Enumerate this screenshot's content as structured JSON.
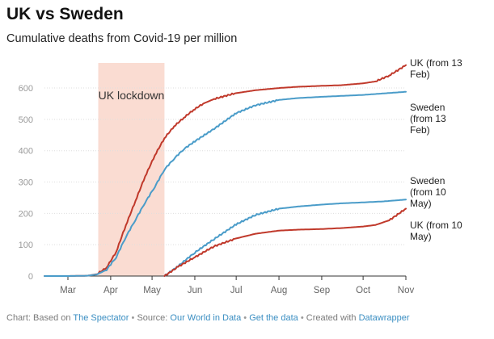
{
  "header": {
    "title": "UK vs Sweden",
    "subtitle": "Cumulative deaths from Covid-19 per million"
  },
  "footer": {
    "prefix": "Chart: Based on ",
    "spectator": "The Spectator",
    "source_label": "Source: ",
    "owid": "Our World in Data",
    "get_data": "Get the data",
    "created_label": "Created with ",
    "datawrapper": "Datawrapper",
    "separator": "•"
  },
  "chart_data": {
    "type": "line",
    "title": "UK vs Sweden",
    "subtitle": "Cumulative deaths from Covid-19 per million",
    "xlabel": "",
    "ylabel": "",
    "x_domain": [
      "2020-02-13",
      "2020-11-01"
    ],
    "ylim": [
      0,
      680
    ],
    "y_ticks": [
      0,
      100,
      200,
      300,
      400,
      500,
      600
    ],
    "x_ticks": [
      {
        "label": "Mar",
        "date": "2020-03-01"
      },
      {
        "label": "Apr",
        "date": "2020-04-01"
      },
      {
        "label": "May",
        "date": "2020-05-01"
      },
      {
        "label": "Jun",
        "date": "2020-06-01"
      },
      {
        "label": "Jul",
        "date": "2020-07-01"
      },
      {
        "label": "Aug",
        "date": "2020-08-01"
      },
      {
        "label": "Sep",
        "date": "2020-09-01"
      },
      {
        "label": "Oct",
        "date": "2020-10-01"
      },
      {
        "label": "Nov",
        "date": "2020-11-01"
      }
    ],
    "grid": true,
    "shaded_range": {
      "label": "UK lockdown",
      "from": "2020-03-23",
      "to": "2020-05-10",
      "color": "#fadcd2"
    },
    "series": [
      {
        "name": "UK (from 13 Feb)",
        "label_lines": [
          "UK (from 13",
          "Feb)"
        ],
        "color": "#c0392b",
        "points": [
          [
            "2020-02-13",
            0
          ],
          [
            "2020-03-01",
            0
          ],
          [
            "2020-03-15",
            1
          ],
          [
            "2020-03-22",
            6
          ],
          [
            "2020-03-29",
            27
          ],
          [
            "2020-04-05",
            77
          ],
          [
            "2020-04-12",
            162
          ],
          [
            "2020-04-19",
            240
          ],
          [
            "2020-04-26",
            318
          ],
          [
            "2020-05-03",
            385
          ],
          [
            "2020-05-10",
            440
          ],
          [
            "2020-05-17",
            478
          ],
          [
            "2020-05-24",
            505
          ],
          [
            "2020-05-31",
            530
          ],
          [
            "2020-06-07",
            550
          ],
          [
            "2020-06-15",
            565
          ],
          [
            "2020-06-30",
            583
          ],
          [
            "2020-07-15",
            593
          ],
          [
            "2020-08-01",
            600
          ],
          [
            "2020-08-15",
            604
          ],
          [
            "2020-09-01",
            607
          ],
          [
            "2020-09-15",
            609
          ],
          [
            "2020-10-01",
            615
          ],
          [
            "2020-10-10",
            621
          ],
          [
            "2020-10-20",
            640
          ],
          [
            "2020-11-01",
            673
          ]
        ]
      },
      {
        "name": "Sweden (from 13 Feb)",
        "label_lines": [
          "Sweden",
          "(from 13",
          "Feb)"
        ],
        "color": "#4a9cc9",
        "points": [
          [
            "2020-02-13",
            0
          ],
          [
            "2020-03-01",
            0
          ],
          [
            "2020-03-15",
            1
          ],
          [
            "2020-03-22",
            5
          ],
          [
            "2020-03-29",
            20
          ],
          [
            "2020-04-05",
            60
          ],
          [
            "2020-04-12",
            125
          ],
          [
            "2020-04-19",
            180
          ],
          [
            "2020-04-26",
            235
          ],
          [
            "2020-05-03",
            285
          ],
          [
            "2020-05-10",
            340
          ],
          [
            "2020-05-17",
            375
          ],
          [
            "2020-05-24",
            405
          ],
          [
            "2020-06-01",
            430
          ],
          [
            "2020-06-15",
            470
          ],
          [
            "2020-07-01",
            520
          ],
          [
            "2020-07-15",
            545
          ],
          [
            "2020-08-01",
            562
          ],
          [
            "2020-08-15",
            568
          ],
          [
            "2020-09-01",
            572
          ],
          [
            "2020-10-01",
            578
          ],
          [
            "2020-11-01",
            588
          ]
        ]
      },
      {
        "name": "Sweden (from 10 May)",
        "label_lines": [
          "Sweden",
          "(from 10",
          "May)"
        ],
        "color": "#4a9cc9",
        "points": [
          [
            "2020-05-10",
            0
          ],
          [
            "2020-05-20",
            32
          ],
          [
            "2020-06-01",
            75
          ],
          [
            "2020-06-15",
            118
          ],
          [
            "2020-07-01",
            165
          ],
          [
            "2020-07-15",
            195
          ],
          [
            "2020-08-01",
            215
          ],
          [
            "2020-08-15",
            222
          ],
          [
            "2020-09-01",
            228
          ],
          [
            "2020-09-15",
            232
          ],
          [
            "2020-10-01",
            235
          ],
          [
            "2020-10-15",
            238
          ],
          [
            "2020-11-01",
            244
          ]
        ]
      },
      {
        "name": "UK (from 10 May)",
        "label_lines": [
          "UK (from 10",
          "May)"
        ],
        "color": "#c0392b",
        "points": [
          [
            "2020-05-10",
            0
          ],
          [
            "2020-05-20",
            30
          ],
          [
            "2020-06-01",
            60
          ],
          [
            "2020-06-15",
            95
          ],
          [
            "2020-07-01",
            120
          ],
          [
            "2020-07-15",
            135
          ],
          [
            "2020-08-01",
            145
          ],
          [
            "2020-08-15",
            148
          ],
          [
            "2020-09-01",
            150
          ],
          [
            "2020-09-15",
            153
          ],
          [
            "2020-10-01",
            158
          ],
          [
            "2020-10-10",
            163
          ],
          [
            "2020-10-20",
            178
          ],
          [
            "2020-11-01",
            215
          ]
        ]
      }
    ]
  }
}
